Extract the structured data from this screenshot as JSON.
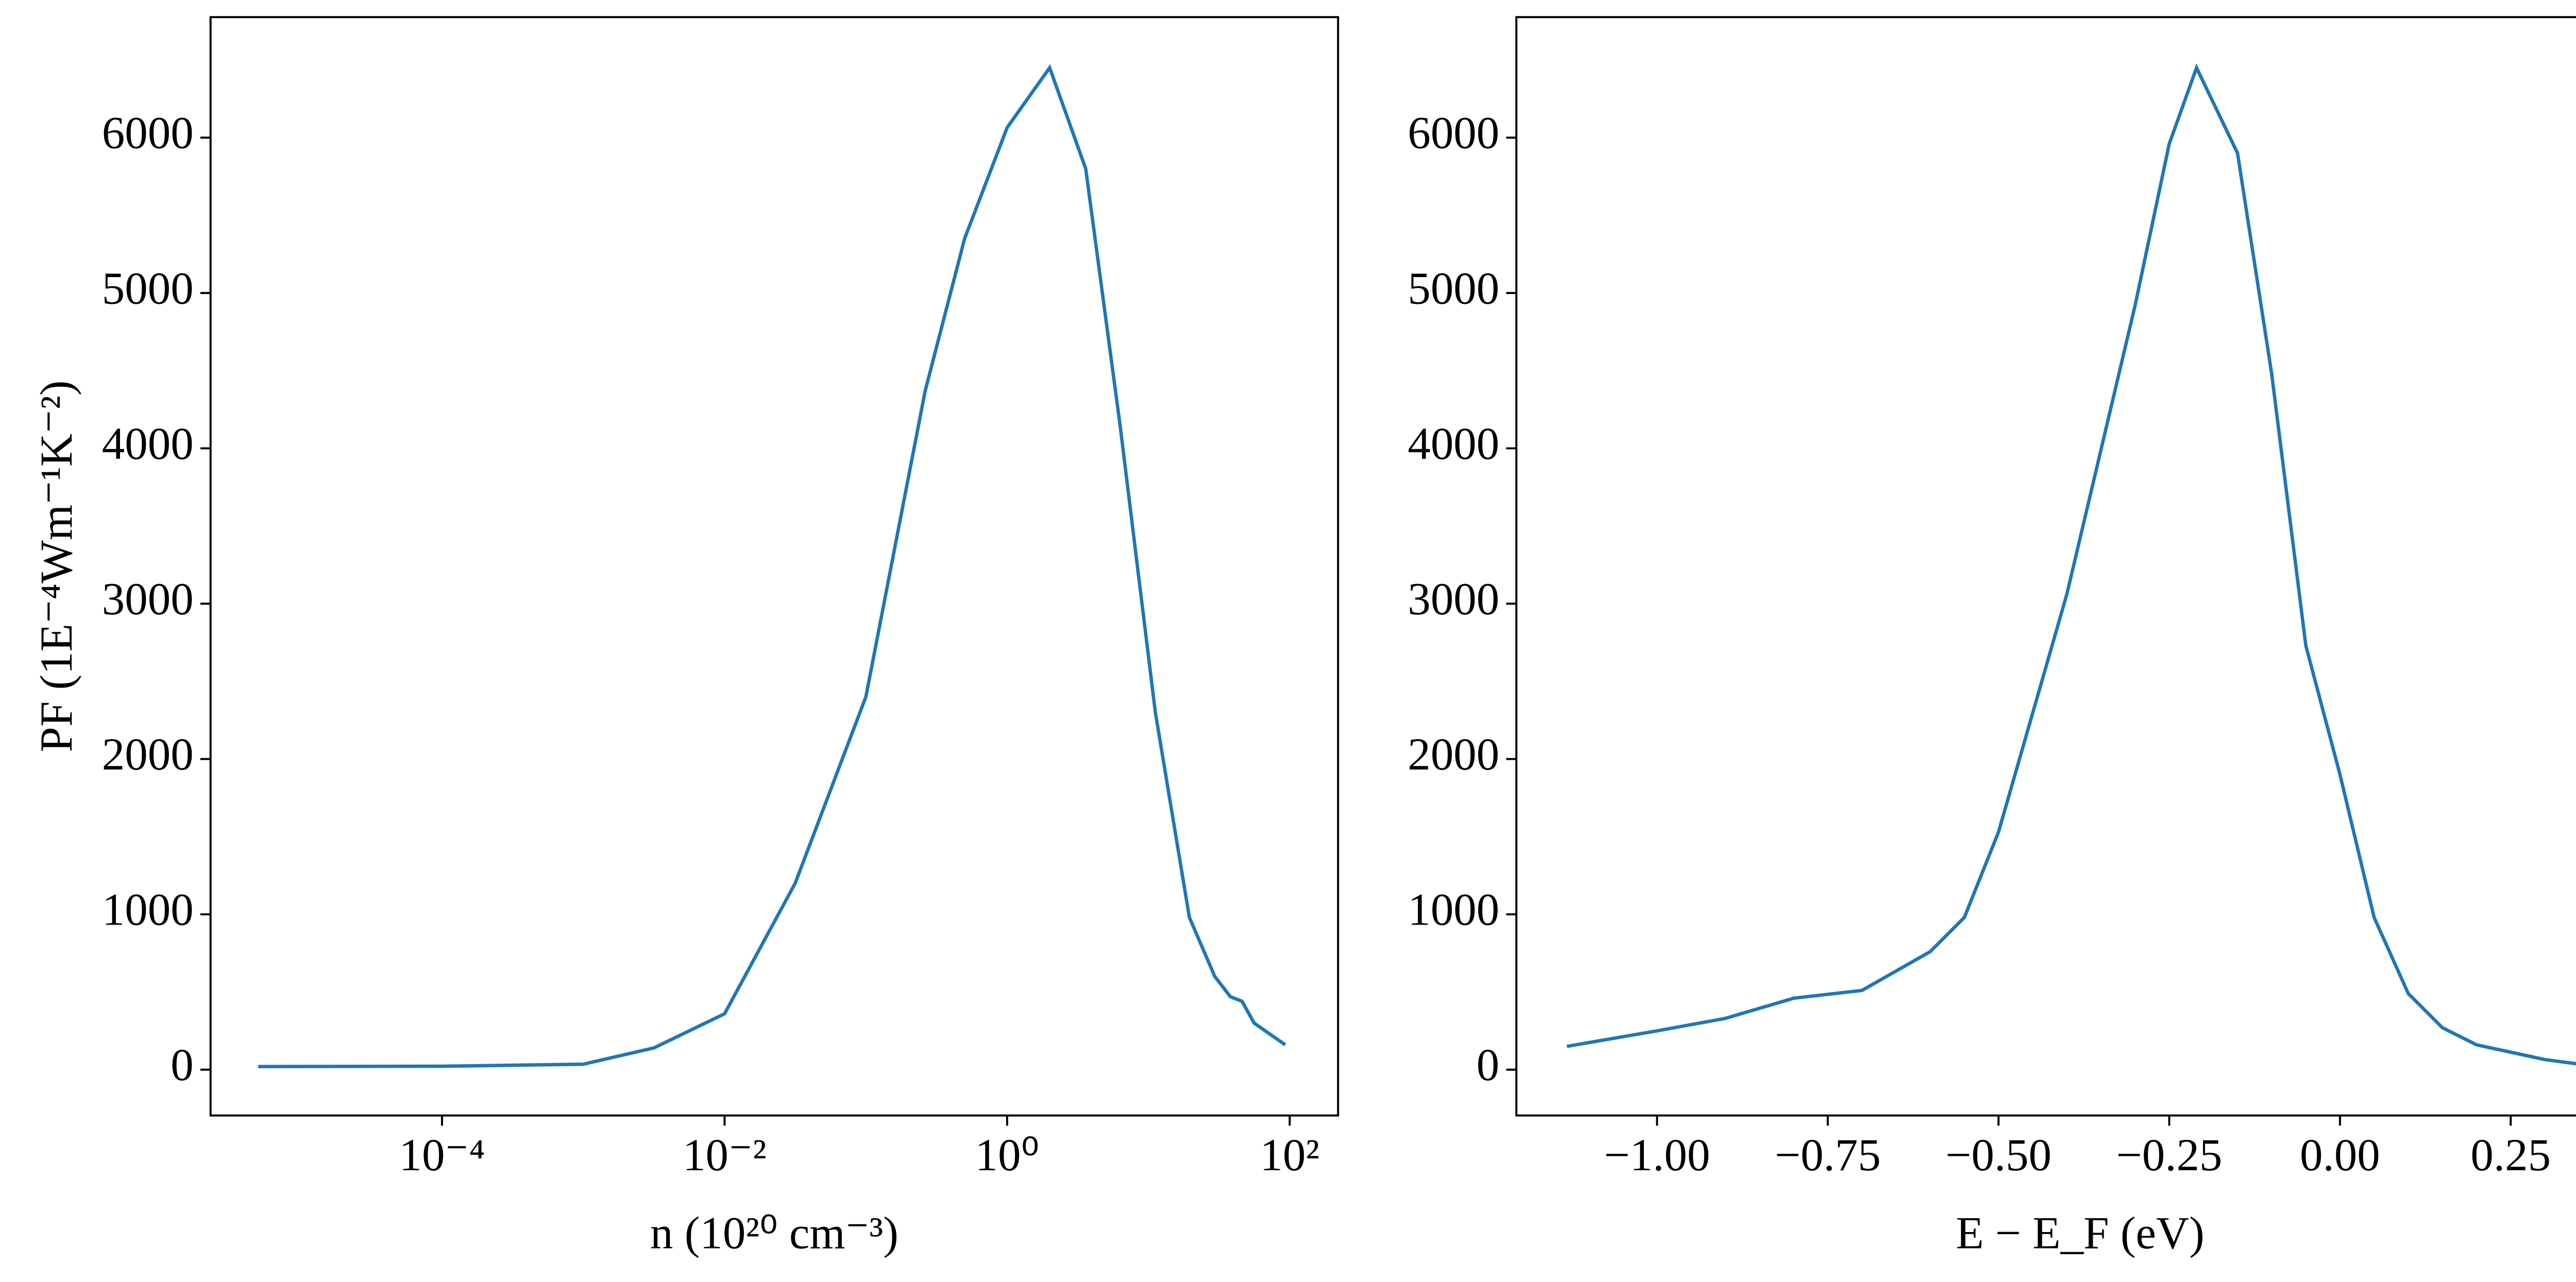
{
  "chart_data": [
    {
      "type": "line",
      "xlabel": "n (10²⁰ cm⁻³)",
      "ylabel": "PF (1E⁻⁴Wm⁻¹K⁻²)",
      "xscale": "log",
      "xlim": [
        2.3e-06,
        220
      ],
      "ylim": [
        -295,
        6776
      ],
      "xticks": [
        {
          "value": 0.0001,
          "label": "10⁻⁴"
        },
        {
          "value": 0.01,
          "label": "10⁻²"
        },
        {
          "value": 1,
          "label": "10⁰"
        },
        {
          "value": 100,
          "label": "10²"
        }
      ],
      "yticks": [
        0,
        1000,
        2000,
        3000,
        4000,
        5000,
        6000
      ],
      "series": [
        {
          "color": "#1f77b4",
          "x": [
            5e-06,
            0.0001,
            0.001,
            0.00316,
            0.01,
            0.0316,
            0.1,
            0.263,
            0.5,
            1,
            2,
            3.6,
            6.3,
            11.2,
            19.5,
            29.5,
            38,
            46,
            56,
            93
          ],
          "values": [
            20,
            22,
            35,
            140,
            360,
            1200,
            2400,
            4370,
            5350,
            6065,
            6450,
            5800,
            4150,
            2300,
            980,
            600,
            470,
            440,
            300,
            160
          ]
        }
      ]
    },
    {
      "type": "line",
      "xlabel": "E − E_F (eV)",
      "xlim": [
        -1.206,
        0.445
      ],
      "ylim": [
        -295,
        6776
      ],
      "xticks": [
        {
          "value": -1,
          "label": "−1.00"
        },
        {
          "value": -0.75,
          "label": "−0.75"
        },
        {
          "value": -0.5,
          "label": "−0.50"
        },
        {
          "value": -0.25,
          "label": "−0.25"
        },
        {
          "value": 0,
          "label": "0.00"
        },
        {
          "value": 0.25,
          "label": "0.25"
        }
      ],
      "yticks": [
        0,
        1000,
        2000,
        3000,
        4000,
        5000,
        6000
      ],
      "series": [
        {
          "color": "#1f77b4",
          "x": [
            -1.132,
            -1.0,
            -0.9,
            -0.8,
            -0.7,
            -0.6,
            -0.55,
            -0.5,
            -0.4,
            -0.3,
            -0.25,
            -0.21,
            -0.15,
            -0.1,
            -0.05,
            0,
            0.05,
            0.1,
            0.15,
            0.2,
            0.3,
            0.36
          ],
          "values": [
            150,
            250,
            330,
            460,
            510,
            760,
            980,
            1530,
            3060,
            4920,
            5960,
            6450,
            5900,
            4480,
            2730,
            1900,
            980,
            490,
            270,
            160,
            65,
            30
          ]
        }
      ]
    }
  ]
}
